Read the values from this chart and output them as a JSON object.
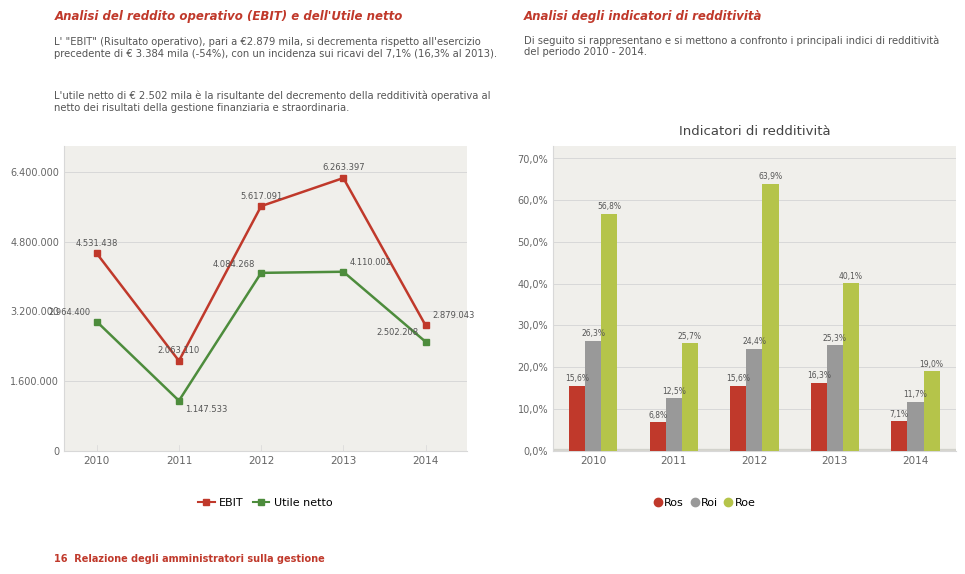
{
  "years": [
    2010,
    2011,
    2012,
    2013,
    2014
  ],
  "ebit": [
    4531438,
    2063110,
    5617091,
    6263397,
    2879043
  ],
  "utile_netto": [
    2964400,
    1147533,
    4084268,
    4110002,
    2502208
  ],
  "ebit_color": "#c0392b",
  "utile_netto_color": "#4d8c3c",
  "left_yticks": [
    0,
    1600000,
    3200000,
    4800000,
    6400000
  ],
  "left_ytick_labels": [
    "0",
    "1.600.000",
    "3.200.000",
    "4.800.000",
    "6.400.000"
  ],
  "left_legend_ebit": "EBIT",
  "left_legend_utile": "Utile netto",
  "ros": [
    15.6,
    6.8,
    15.6,
    16.3,
    7.1
  ],
  "roi": [
    26.3,
    12.5,
    24.4,
    25.3,
    11.7
  ],
  "roe": [
    56.8,
    25.7,
    63.9,
    40.1,
    19.0
  ],
  "ros_color": "#c0392b",
  "roi_color": "#999999",
  "roe_color": "#b5c44a",
  "right_title": "Indicatori di redditività",
  "right_yticks": [
    0.0,
    10.0,
    20.0,
    30.0,
    40.0,
    50.0,
    60.0,
    70.0
  ],
  "right_ytick_labels": [
    "0,0%",
    "10,0%",
    "20,0%",
    "30,0%",
    "40,0%",
    "50,0%",
    "60,0%",
    "70,0%"
  ],
  "ebit_labels": [
    "4.531.438",
    "2.063.110",
    "5.617.091",
    "6.263.397",
    "2.879.043"
  ],
  "utile_labels": [
    "2.964.400",
    "1.147.533",
    "4.084.268",
    "4.110.002",
    "2.502.208"
  ],
  "ros_labels": [
    "15,6%",
    "6,8%",
    "15,6%",
    "16,3%",
    "7,1%"
  ],
  "roi_labels": [
    "26,3%",
    "12,5%",
    "24,4%",
    "25,3%",
    "11,7%"
  ],
  "roe_labels": [
    "56,8%",
    "25,7%",
    "63,9%",
    "40,1%",
    "19,0%"
  ],
  "chart_bg": "#f0efeb",
  "grid_color": "#d8d8d8",
  "label_color": "#666666",
  "annot_color": "#555555"
}
